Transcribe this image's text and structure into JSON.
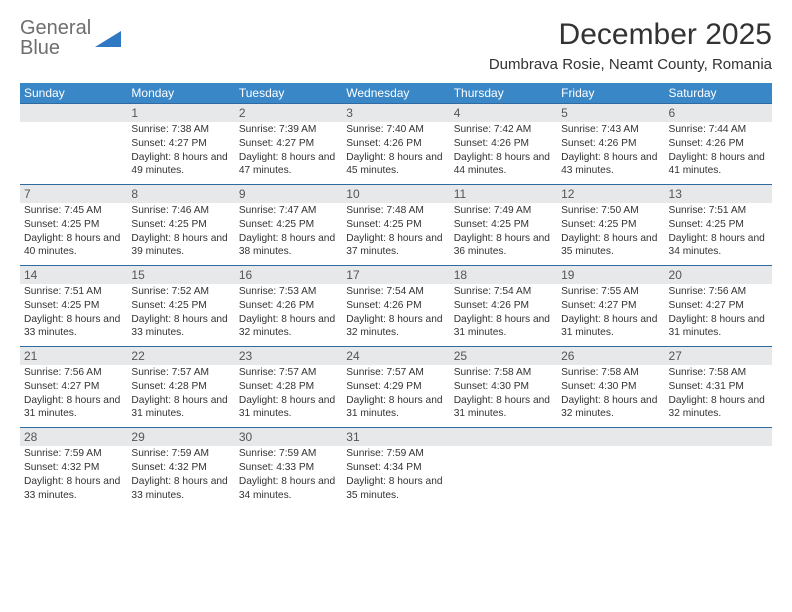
{
  "logo": {
    "line1": "General",
    "line2": "Blue"
  },
  "title": "December 2025",
  "location": "Dumbrava Rosie, Neamt County, Romania",
  "colors": {
    "header_bg": "#3a87c8",
    "header_text": "#ffffff",
    "num_row_bg": "#e7e8ea",
    "row_border": "#2f6aa3",
    "body_text": "#333333",
    "logo_gray": "#6e6e6e",
    "logo_blue": "#2f78c4"
  },
  "dayNames": [
    "Sunday",
    "Monday",
    "Tuesday",
    "Wednesday",
    "Thursday",
    "Friday",
    "Saturday"
  ],
  "weeks": [
    [
      null,
      {
        "n": "1",
        "sr": "7:38 AM",
        "ss": "4:27 PM",
        "dl": "8 hours and 49 minutes."
      },
      {
        "n": "2",
        "sr": "7:39 AM",
        "ss": "4:27 PM",
        "dl": "8 hours and 47 minutes."
      },
      {
        "n": "3",
        "sr": "7:40 AM",
        "ss": "4:26 PM",
        "dl": "8 hours and 45 minutes."
      },
      {
        "n": "4",
        "sr": "7:42 AM",
        "ss": "4:26 PM",
        "dl": "8 hours and 44 minutes."
      },
      {
        "n": "5",
        "sr": "7:43 AM",
        "ss": "4:26 PM",
        "dl": "8 hours and 43 minutes."
      },
      {
        "n": "6",
        "sr": "7:44 AM",
        "ss": "4:26 PM",
        "dl": "8 hours and 41 minutes."
      }
    ],
    [
      {
        "n": "7",
        "sr": "7:45 AM",
        "ss": "4:25 PM",
        "dl": "8 hours and 40 minutes."
      },
      {
        "n": "8",
        "sr": "7:46 AM",
        "ss": "4:25 PM",
        "dl": "8 hours and 39 minutes."
      },
      {
        "n": "9",
        "sr": "7:47 AM",
        "ss": "4:25 PM",
        "dl": "8 hours and 38 minutes."
      },
      {
        "n": "10",
        "sr": "7:48 AM",
        "ss": "4:25 PM",
        "dl": "8 hours and 37 minutes."
      },
      {
        "n": "11",
        "sr": "7:49 AM",
        "ss": "4:25 PM",
        "dl": "8 hours and 36 minutes."
      },
      {
        "n": "12",
        "sr": "7:50 AM",
        "ss": "4:25 PM",
        "dl": "8 hours and 35 minutes."
      },
      {
        "n": "13",
        "sr": "7:51 AM",
        "ss": "4:25 PM",
        "dl": "8 hours and 34 minutes."
      }
    ],
    [
      {
        "n": "14",
        "sr": "7:51 AM",
        "ss": "4:25 PM",
        "dl": "8 hours and 33 minutes."
      },
      {
        "n": "15",
        "sr": "7:52 AM",
        "ss": "4:25 PM",
        "dl": "8 hours and 33 minutes."
      },
      {
        "n": "16",
        "sr": "7:53 AM",
        "ss": "4:26 PM",
        "dl": "8 hours and 32 minutes."
      },
      {
        "n": "17",
        "sr": "7:54 AM",
        "ss": "4:26 PM",
        "dl": "8 hours and 32 minutes."
      },
      {
        "n": "18",
        "sr": "7:54 AM",
        "ss": "4:26 PM",
        "dl": "8 hours and 31 minutes."
      },
      {
        "n": "19",
        "sr": "7:55 AM",
        "ss": "4:27 PM",
        "dl": "8 hours and 31 minutes."
      },
      {
        "n": "20",
        "sr": "7:56 AM",
        "ss": "4:27 PM",
        "dl": "8 hours and 31 minutes."
      }
    ],
    [
      {
        "n": "21",
        "sr": "7:56 AM",
        "ss": "4:27 PM",
        "dl": "8 hours and 31 minutes."
      },
      {
        "n": "22",
        "sr": "7:57 AM",
        "ss": "4:28 PM",
        "dl": "8 hours and 31 minutes."
      },
      {
        "n": "23",
        "sr": "7:57 AM",
        "ss": "4:28 PM",
        "dl": "8 hours and 31 minutes."
      },
      {
        "n": "24",
        "sr": "7:57 AM",
        "ss": "4:29 PM",
        "dl": "8 hours and 31 minutes."
      },
      {
        "n": "25",
        "sr": "7:58 AM",
        "ss": "4:30 PM",
        "dl": "8 hours and 31 minutes."
      },
      {
        "n": "26",
        "sr": "7:58 AM",
        "ss": "4:30 PM",
        "dl": "8 hours and 32 minutes."
      },
      {
        "n": "27",
        "sr": "7:58 AM",
        "ss": "4:31 PM",
        "dl": "8 hours and 32 minutes."
      }
    ],
    [
      {
        "n": "28",
        "sr": "7:59 AM",
        "ss": "4:32 PM",
        "dl": "8 hours and 33 minutes."
      },
      {
        "n": "29",
        "sr": "7:59 AM",
        "ss": "4:32 PM",
        "dl": "8 hours and 33 minutes."
      },
      {
        "n": "30",
        "sr": "7:59 AM",
        "ss": "4:33 PM",
        "dl": "8 hours and 34 minutes."
      },
      {
        "n": "31",
        "sr": "7:59 AM",
        "ss": "4:34 PM",
        "dl": "8 hours and 35 minutes."
      },
      null,
      null,
      null
    ]
  ],
  "labels": {
    "sunrise": "Sunrise:",
    "sunset": "Sunset:",
    "daylight": "Daylight:"
  }
}
